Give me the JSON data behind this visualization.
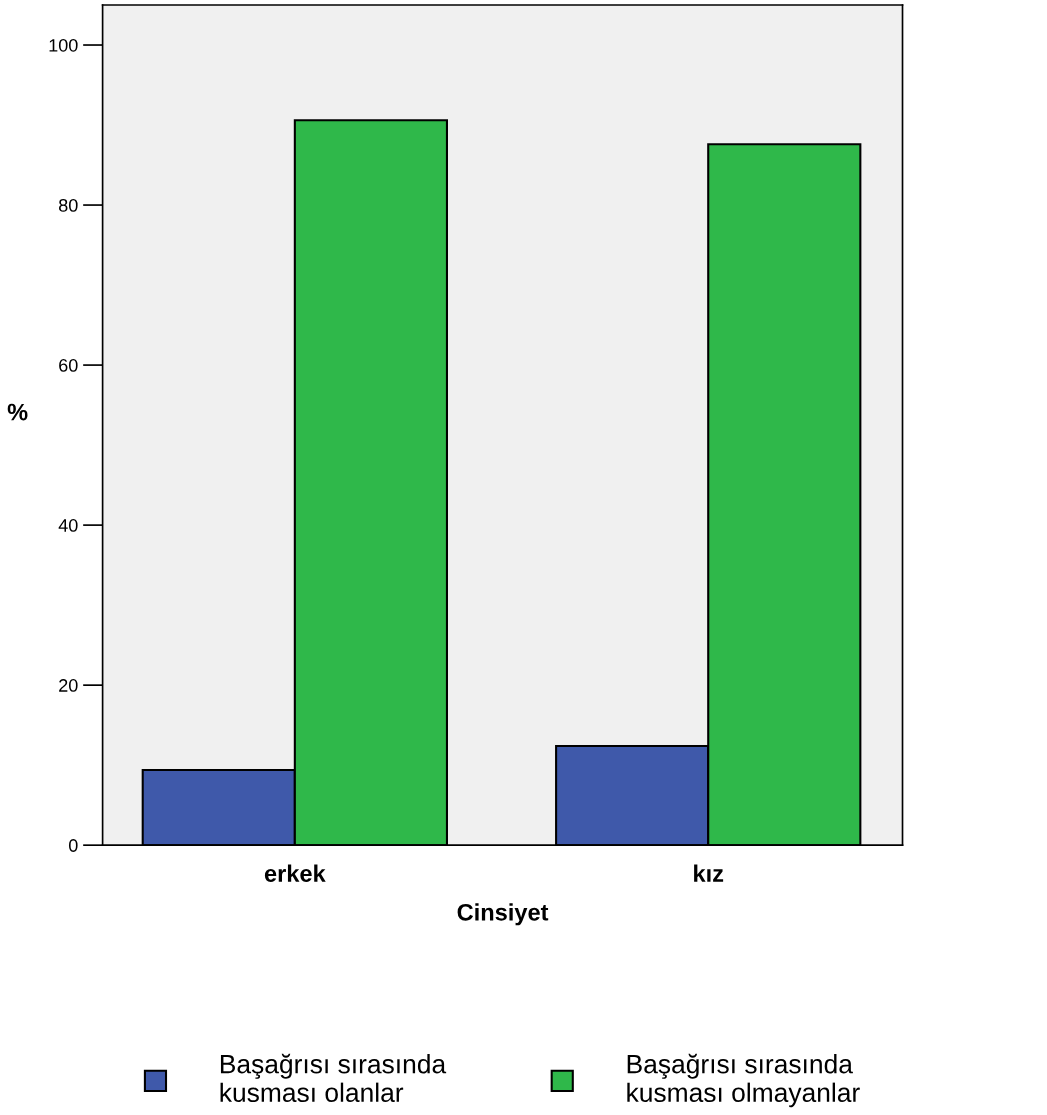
{
  "chart_data": {
    "type": "bar",
    "xlabel": "Cinsiyet",
    "ylabel": "%",
    "categories": [
      "erkek",
      "kız"
    ],
    "series": [
      {
        "name": "Başağrısı sırasında\nkusması olanlar",
        "color": "#3f59aa",
        "values": [
          9.4,
          12.4
        ]
      },
      {
        "name": "Başağrısı sırasında\nkusması olmayanlar",
        "color": "#2fb84a",
        "values": [
          90.6,
          87.6
        ]
      }
    ],
    "ylim": [
      0,
      105
    ],
    "yticks": [
      0,
      20,
      40,
      60,
      80,
      100
    ],
    "grid": false,
    "legend": "bottom"
  }
}
